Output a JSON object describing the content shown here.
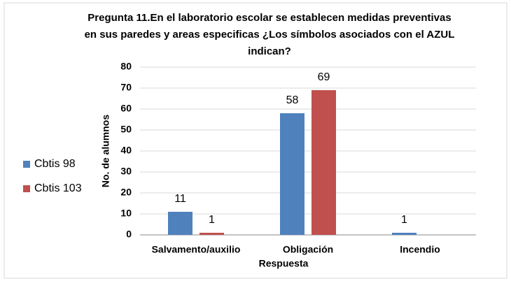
{
  "chart_data": {
    "type": "bar",
    "title": [
      "Pregunta 11.En el laboratorio escolar se establecen medidas preventivas",
      "en sus  paredes y areas especificas ¿Los símbolos asociados con el AZUL",
      "indican?"
    ],
    "x_label": "Respuesta",
    "y_label": "No. de alumnos",
    "categories": [
      "Salvamento/auxilio",
      "Obligación",
      "Incendio"
    ],
    "series": [
      {
        "name": "Cbtis 98",
        "color": "#4f81bd",
        "values": [
          11,
          58,
          1
        ]
      },
      {
        "name": "Cbtis 103",
        "color": "#c0504d",
        "values": [
          1,
          69,
          null
        ]
      }
    ],
    "ylim": [
      0,
      80
    ],
    "yticks": [
      0,
      10,
      20,
      30,
      40,
      50,
      60,
      70,
      80
    ],
    "grid": true,
    "legend": "left"
  }
}
